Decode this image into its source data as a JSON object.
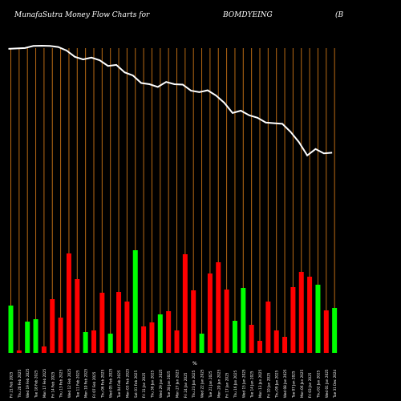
{
  "header": {
    "left": "MunafaSutra  Money Flow  Charts for",
    "symbol": "BOMDYEING",
    "right": "(B"
  },
  "axis_marker": "%",
  "chart_data": {
    "type": "bar",
    "title": "MunafaSutra Money Flow Charts for BOMDYEING",
    "background": "#000000",
    "colors": {
      "up": "#00ff00",
      "down": "#ff0000",
      "grid": "#b86a14",
      "line": "#ffffff"
    },
    "bar_ylim": [
      0,
      130
    ],
    "line_ylim": [
      0,
      100
    ],
    "bars": [
      {
        "value": 59,
        "dir": "up"
      },
      {
        "value": 3,
        "dir": "down"
      },
      {
        "value": 39,
        "dir": "up"
      },
      {
        "value": 42,
        "dir": "up"
      },
      {
        "value": 8,
        "dir": "down"
      },
      {
        "value": 67,
        "dir": "down"
      },
      {
        "value": 44,
        "dir": "down"
      },
      {
        "value": 124,
        "dir": "down"
      },
      {
        "value": 92,
        "dir": "down"
      },
      {
        "value": 26,
        "dir": "up"
      },
      {
        "value": 28,
        "dir": "down"
      },
      {
        "value": 75,
        "dir": "down"
      },
      {
        "value": 24,
        "dir": "up"
      },
      {
        "value": 76,
        "dir": "down"
      },
      {
        "value": 64,
        "dir": "down"
      },
      {
        "value": 128,
        "dir": "up"
      },
      {
        "value": 33,
        "dir": "down"
      },
      {
        "value": 38,
        "dir": "down"
      },
      {
        "value": 48,
        "dir": "up"
      },
      {
        "value": 52,
        "dir": "down"
      },
      {
        "value": 28,
        "dir": "down"
      },
      {
        "value": 123,
        "dir": "down"
      },
      {
        "value": 78,
        "dir": "down"
      },
      {
        "value": 24,
        "dir": "up"
      },
      {
        "value": 99,
        "dir": "down"
      },
      {
        "value": 113,
        "dir": "down"
      },
      {
        "value": 79,
        "dir": "down"
      },
      {
        "value": 40,
        "dir": "up"
      },
      {
        "value": 81,
        "dir": "up"
      },
      {
        "value": 35,
        "dir": "down"
      },
      {
        "value": 15,
        "dir": "down"
      },
      {
        "value": 64,
        "dir": "down"
      },
      {
        "value": 28,
        "dir": "down"
      },
      {
        "value": 20,
        "dir": "down"
      },
      {
        "value": 82,
        "dir": "down"
      },
      {
        "value": 101,
        "dir": "down"
      },
      {
        "value": 95,
        "dir": "down"
      },
      {
        "value": 85,
        "dir": "up"
      },
      {
        "value": 53,
        "dir": "down"
      },
      {
        "value": 56,
        "dir": "up"
      }
    ],
    "price_line": [
      98.5,
      98.7,
      98.9,
      99.9,
      100,
      99.9,
      99.4,
      97.7,
      94.7,
      93.4,
      94.3,
      93,
      90.3,
      90.8,
      87.2,
      85.7,
      82.1,
      81.5,
      80.2,
      82.6,
      81.5,
      81.3,
      78.4,
      77.7,
      78.6,
      76.1,
      72.6,
      67.7,
      68.8,
      66.6,
      65.4,
      63.1,
      62.8,
      62.5,
      58.6,
      53.7,
      47.3,
      50.4,
      48.3,
      48.6
    ],
    "x_tick_labels": [
      "Fri 21 Feb 2025",
      "Thu 20 Feb 2025",
      "Wed 19 Feb 2025",
      "Tue 18 Feb 2025",
      "Mon 17 Feb 2025",
      "Fri 14 Feb 2025",
      "Thu 13 Feb 2025",
      "Wed 12 Feb 2025",
      "Tue 11 Feb 2025",
      "Mon 10 Feb 2025",
      "Fri 07 Feb 2025",
      "Thu 06 Feb 2025",
      "Wed 05 Feb 2025",
      "Tue 04 Feb 2025",
      "Mon 03 Feb 2025",
      "Sat 01 Feb 2025",
      "Fri 31 Jan 2025",
      "Thu 30 Jan 2025",
      "Wed 29 Jan 2025",
      "Tue 28 Jan 2025",
      "Mon 27 Jan 2025",
      "Fri 24 Jan 2025",
      "Thu 23 Jan 2025",
      "Wed 22 Jan 2025",
      "Tue 21 Jan 2025",
      "Mon 20 Jan 2025",
      "Fri 17 Jan 2025",
      "Thu 16 Jan 2025",
      "Wed 15 Jan 2025",
      "Tue 14 Jan 2025",
      "Mon 13 Jan 2025",
      "Fri 10 Jan 2025",
      "Thu 09 Jan 2025",
      "Wed 08 Jan 2025",
      "Tue 07 Jan 2025",
      "Mon 06 Jan 2025",
      "Fri 03 Jan 2025",
      "Thu 02 Jan 2025",
      "Wed 01 Jan 2025",
      "Tue 31 Dec 2024"
    ]
  }
}
